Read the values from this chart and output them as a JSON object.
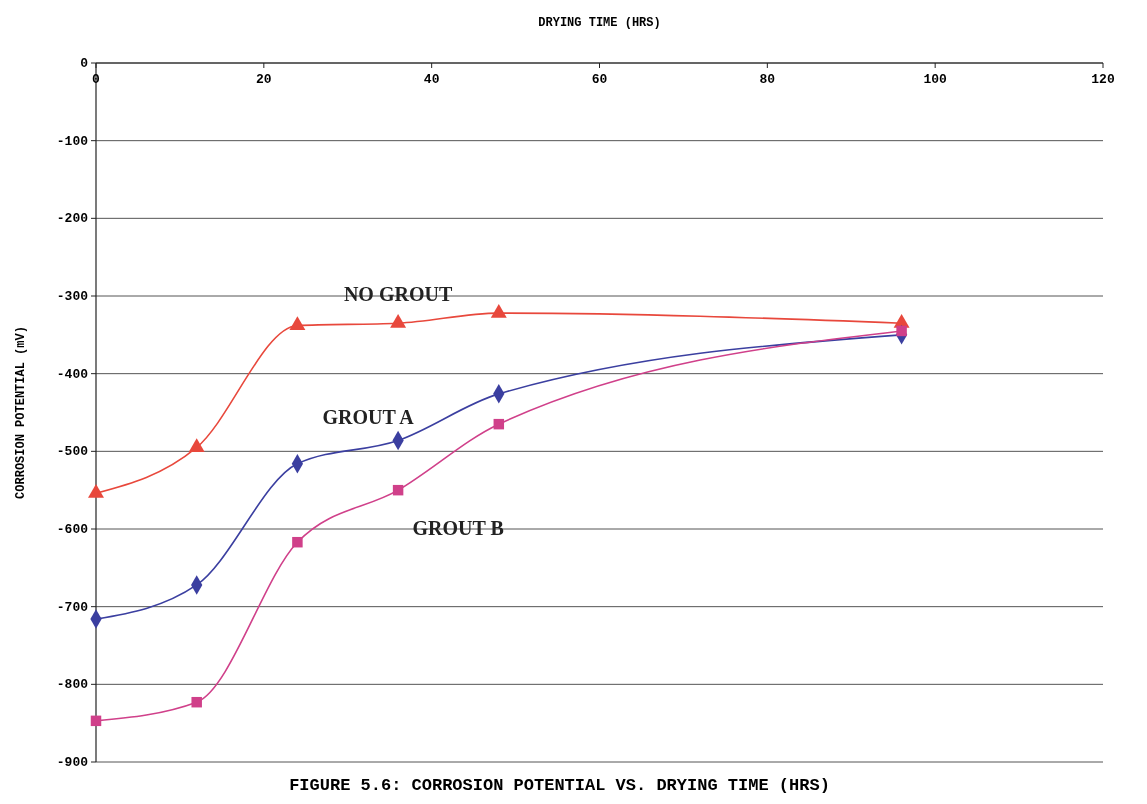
{
  "chart_data": {
    "type": "line",
    "title": "FIGURE 5.6: CORROSION POTENTIAL VS. DRYING TIME (HRS)",
    "xlabel": "DRYING TIME (HRS)",
    "ylabel": "CORROSION POTENTIAL (mV)",
    "x": [
      0,
      12,
      24,
      36,
      48,
      96
    ],
    "series": [
      {
        "name": "NO GROUT",
        "color": "#e8483c",
        "marker": "triangle",
        "values": [
          -554,
          -495,
          -338,
          -335,
          -322,
          -335
        ]
      },
      {
        "name": "GROUT A",
        "color": "#3b3fa0",
        "marker": "diamond",
        "values": [
          -716,
          -672,
          -516,
          -486,
          -426,
          -350
        ]
      },
      {
        "name": "GROUT B",
        "color": "#d0408a",
        "marker": "square",
        "values": [
          -847,
          -823,
          -617,
          -550,
          -465,
          -345
        ]
      }
    ],
    "xlim": [
      0,
      120
    ],
    "xticks": [
      0,
      20,
      40,
      60,
      80,
      100,
      120
    ],
    "ylim": [
      -900,
      0
    ],
    "yticks": [
      0,
      -100,
      -200,
      -300,
      -400,
      -500,
      -600,
      -700,
      -800,
      -900
    ],
    "grid": "y",
    "line_style": "solid"
  }
}
